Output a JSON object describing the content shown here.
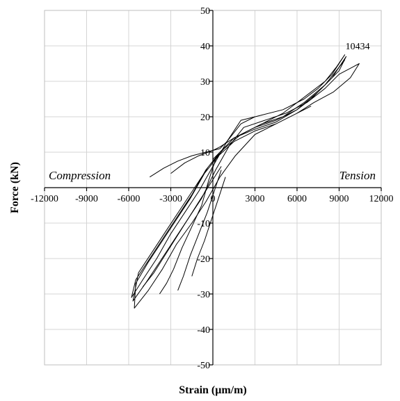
{
  "chart_data": {
    "type": "line",
    "title": "",
    "xlabel": "Strain (μm/m)",
    "ylabel": "Force (kN)",
    "xlim": [
      -12000,
      12000
    ],
    "ylim": [
      -50,
      50
    ],
    "xticks": [
      -12000,
      -9000,
      -6000,
      -3000,
      0,
      3000,
      6000,
      9000,
      12000
    ],
    "yticks": [
      -50,
      -40,
      -30,
      -20,
      -10,
      0,
      10,
      20,
      30,
      40,
      50
    ],
    "x_tick_labels": [
      "-12000",
      "-9000",
      "-6000",
      "-3000",
      "0",
      "3000",
      "6000",
      "9000",
      "12000"
    ],
    "y_tick_labels": [
      "-50",
      "-40",
      "-30",
      "-20",
      "-10",
      "0",
      "10",
      "20",
      "30",
      "40",
      "50"
    ],
    "grid": true,
    "legend": "none",
    "annotations": [
      {
        "text": "Compression",
        "x": -12000,
        "y": 3
      },
      {
        "text": "Tension",
        "x": 12000,
        "y": 3
      },
      {
        "text": "10434",
        "x": 10434,
        "y": 35
      }
    ],
    "series": [
      {
        "x": [
          0,
          1500,
          3000,
          4500,
          6000,
          7500,
          8500,
          9500,
          9000,
          8000,
          7000,
          6000,
          4500,
          3000,
          1500,
          500,
          -500,
          -1500,
          -2500,
          -3500,
          -4500,
          -5500,
          -5800,
          -5000,
          -4000,
          -3000,
          -2000,
          -1000,
          0,
          1000,
          2000,
          3500,
          5000,
          6500,
          7500,
          8500,
          9400,
          8800,
          8000,
          7000,
          6000,
          5000,
          3500,
          2000,
          800,
          -300,
          -1300,
          -2300,
          -3300,
          -4300,
          -5300,
          -5700,
          -4800,
          -3800,
          -2800,
          -1800,
          -800,
          200,
          1200,
          2200,
          3700,
          5200,
          6700,
          8000,
          9000,
          10434,
          9800,
          8600,
          7200,
          6000,
          4500,
          3000,
          1500,
          400,
          -600,
          -1600,
          -2600,
          -3600,
          -4600,
          -5500,
          -5600,
          -4600,
          -3600,
          -2600,
          -1500,
          -500,
          500,
          1600,
          3000,
          4500,
          6000,
          7000
        ],
        "y": [
          8,
          14,
          16.5,
          18.5,
          22,
          27,
          31,
          37,
          33,
          29,
          25,
          22,
          19,
          17,
          14,
          10,
          5,
          -2,
          -8,
          -14,
          -20,
          -26,
          -31,
          -26,
          -20,
          -13,
          -7,
          -1,
          6,
          13,
          19,
          20.5,
          22,
          25,
          28,
          32,
          37.5,
          34,
          30,
          27,
          24,
          21,
          18,
          15,
          11,
          6,
          0,
          -6,
          -12,
          -18,
          -24,
          -32,
          -27,
          -21,
          -15,
          -9,
          -3,
          5,
          12,
          17,
          19,
          21,
          24,
          28,
          32,
          35,
          31,
          27,
          24,
          21,
          18,
          16,
          13,
          9,
          4,
          -3,
          -9,
          -15,
          -21,
          -27,
          -34,
          -29,
          -23,
          -16,
          -10,
          -4,
          3,
          9,
          15,
          18,
          21,
          23
        ]
      },
      {
        "x": [
          -3000,
          -2000,
          -1000,
          0,
          500,
          1500,
          2500,
          3500,
          5000,
          6500,
          8000,
          9400
        ],
        "y": [
          4,
          7,
          9,
          10.5,
          11.5,
          14,
          16,
          18,
          20,
          24,
          29,
          36
        ]
      },
      {
        "x": [
          200,
          -300,
          -800,
          -1500,
          -2200,
          -2800,
          -3300,
          -3800
        ],
        "y": [
          8,
          2,
          -5,
          -11,
          -17,
          -23,
          -27,
          -30
        ]
      },
      {
        "x": [
          600,
          100,
          -400,
          -1000,
          -1600,
          -2100,
          -2500
        ],
        "y": [
          5,
          -1,
          -7,
          -13,
          -19,
          -25,
          -29
        ]
      },
      {
        "x": [
          900,
          400,
          -100,
          -600,
          -1100,
          -1500
        ],
        "y": [
          3,
          -3,
          -9,
          -15,
          -20,
          -25
        ]
      },
      {
        "x": [
          -4500,
          -3500,
          -2500,
          -1500,
          -500,
          500,
          1000,
          2000,
          3000
        ],
        "y": [
          3,
          5.5,
          7.5,
          9,
          10,
          11,
          13,
          18,
          20
        ]
      },
      {
        "x": [
          -5000,
          -4200,
          -3400,
          -2600,
          -1800,
          -1000,
          -200,
          600
        ],
        "y": [
          -28,
          -24,
          -19,
          -14,
          -9,
          -4,
          1,
          6
        ]
      }
    ]
  }
}
